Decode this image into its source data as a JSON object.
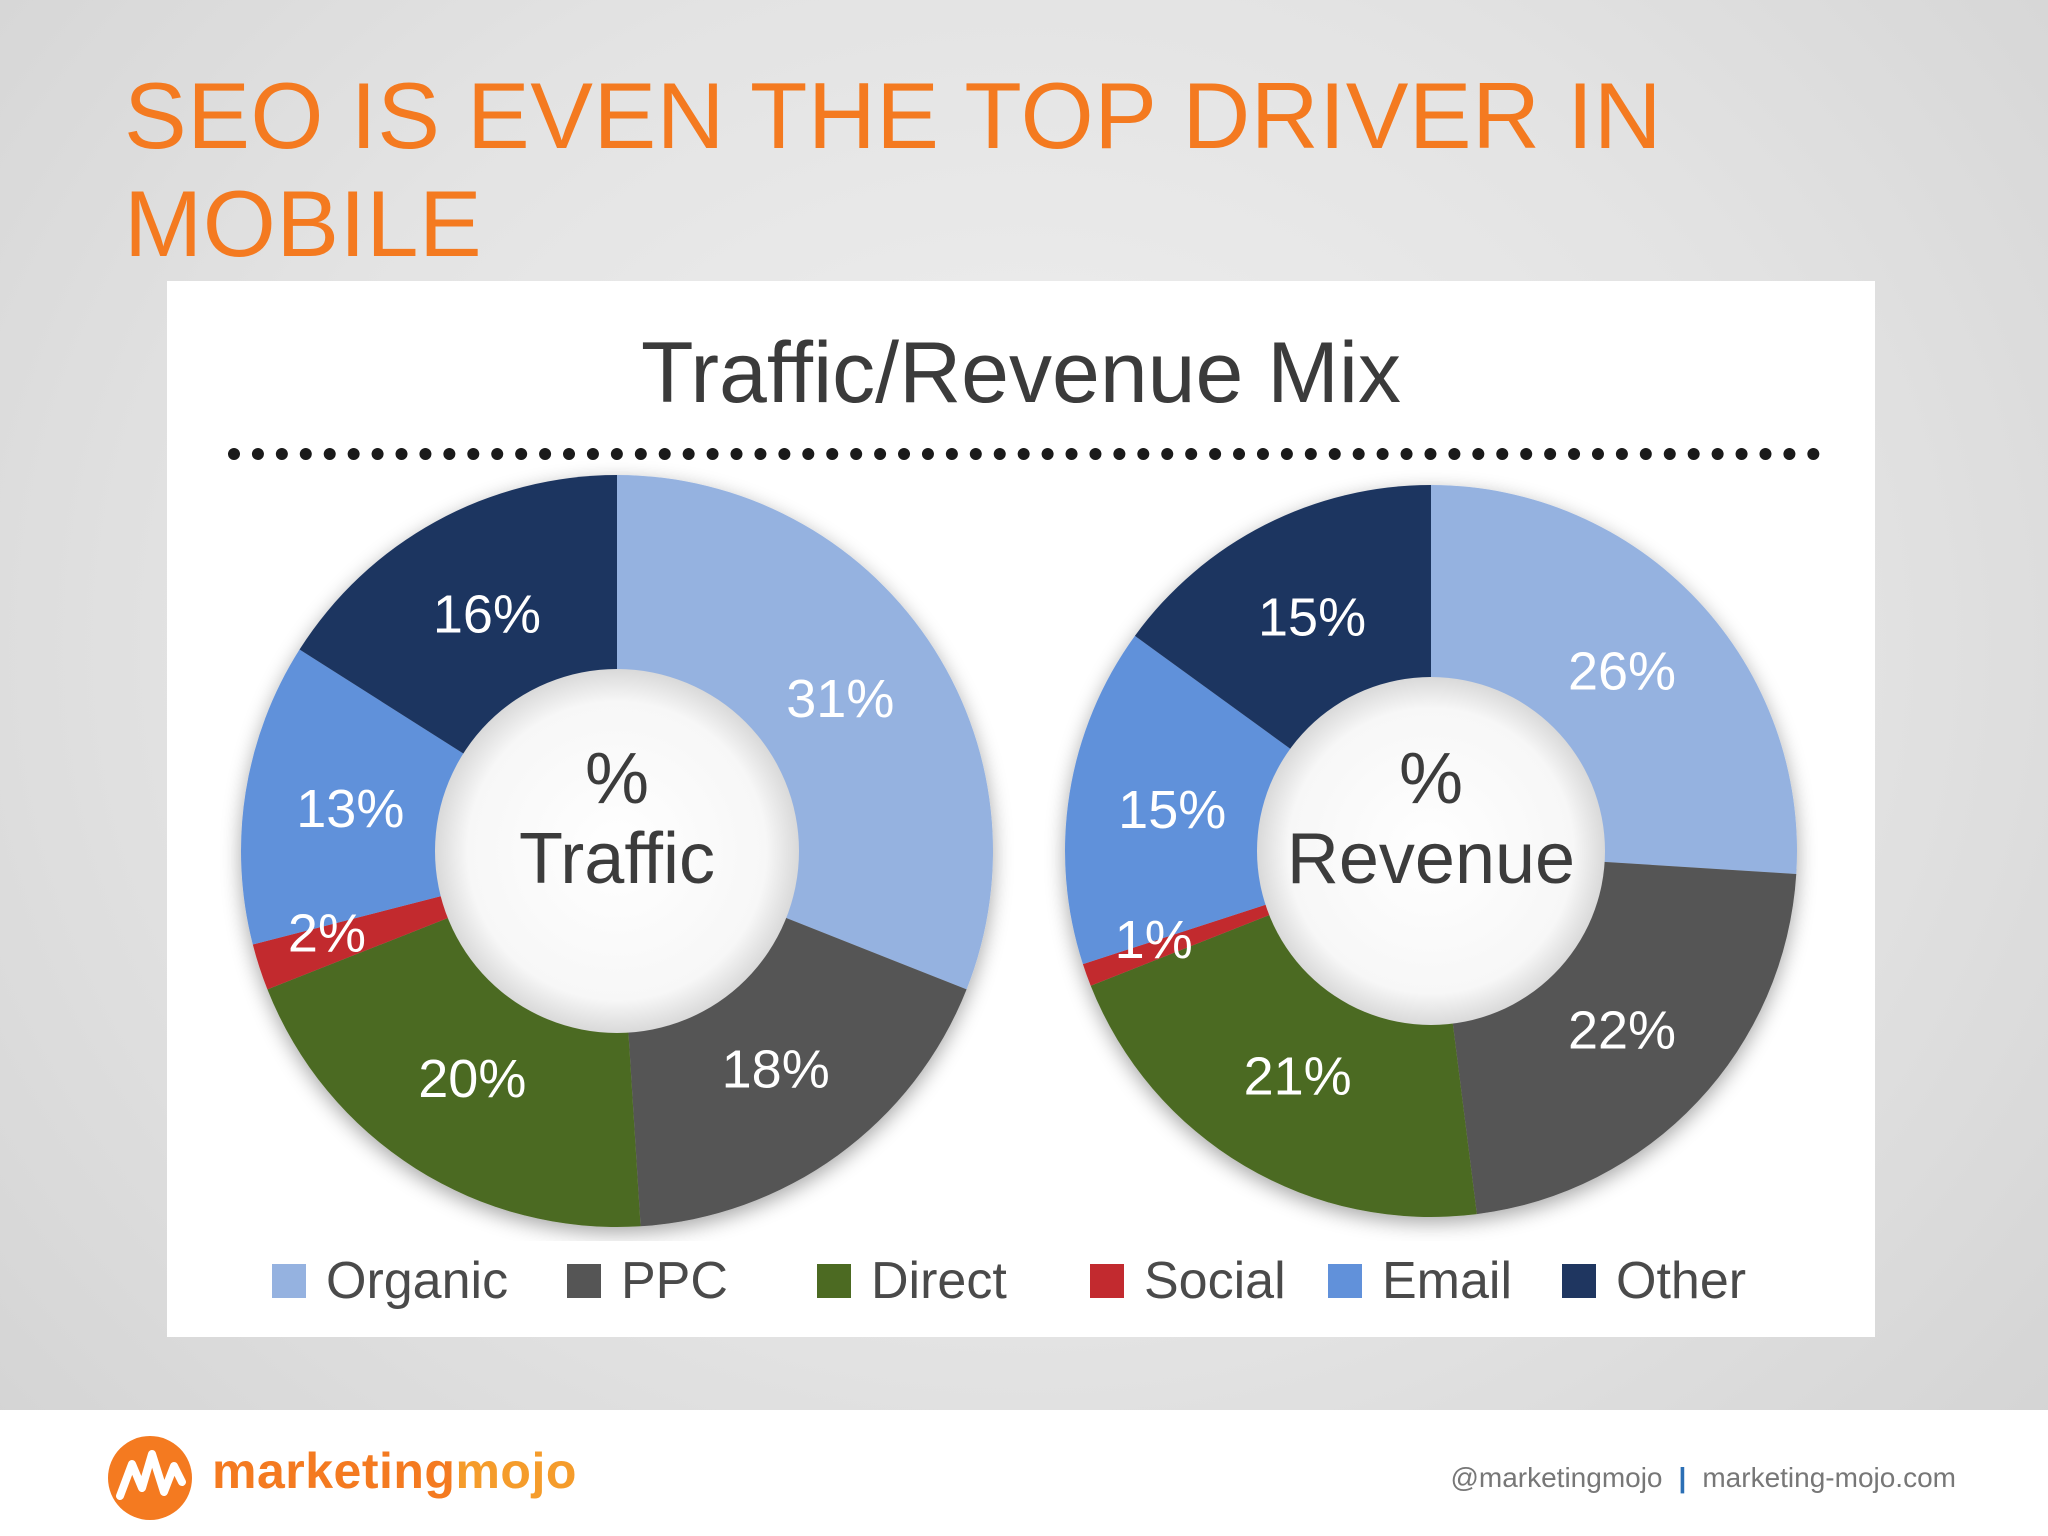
{
  "slide": {
    "title": "SEO IS EVEN THE TOP DRIVER IN MOBILE"
  },
  "colors": {
    "Organic": "#95b2e0",
    "PPC": "#555555",
    "Direct": "#4c6a22",
    "Social": "#c22a2f",
    "Email": "#6191da",
    "Other": "#1f3660",
    "title_orange": "#f47a20"
  },
  "chart_data": {
    "title": "Traffic/Revenue Mix",
    "legend": [
      "Organic",
      "PPC",
      "Direct",
      "Social",
      "Email",
      "Other"
    ],
    "legend_position": "bottom",
    "charts": [
      {
        "type": "pie",
        "center_label": "% Traffic",
        "center_lines": [
          "%",
          "Traffic"
        ],
        "slices": [
          {
            "label": "Organic",
            "value": 31,
            "text": "31%"
          },
          {
            "label": "PPC",
            "value": 18,
            "text": "18%"
          },
          {
            "label": "Direct",
            "value": 20,
            "text": "20%"
          },
          {
            "label": "Social",
            "value": 2,
            "text": "2%"
          },
          {
            "label": "Email",
            "value": 13,
            "text": "13%"
          },
          {
            "label": "Other",
            "value": 16,
            "text": "16%"
          }
        ]
      },
      {
        "type": "pie",
        "center_label": "% Revenue",
        "center_lines": [
          "%",
          "Revenue"
        ],
        "slices": [
          {
            "label": "Organic",
            "value": 26,
            "text": "26%"
          },
          {
            "label": "PPC",
            "value": 22,
            "text": "22%"
          },
          {
            "label": "Direct",
            "value": 21,
            "text": "21%"
          },
          {
            "label": "Social",
            "value": 1,
            "text": "1%"
          },
          {
            "label": "Email",
            "value": 15,
            "text": "15%"
          },
          {
            "label": "Other",
            "value": 15,
            "text": "15%"
          }
        ]
      }
    ]
  },
  "footer": {
    "brand_part1": "marketing",
    "brand_part2": "mojo",
    "handle": "@marketingmojo",
    "separator": "|",
    "website": "marketing-mojo.com"
  }
}
